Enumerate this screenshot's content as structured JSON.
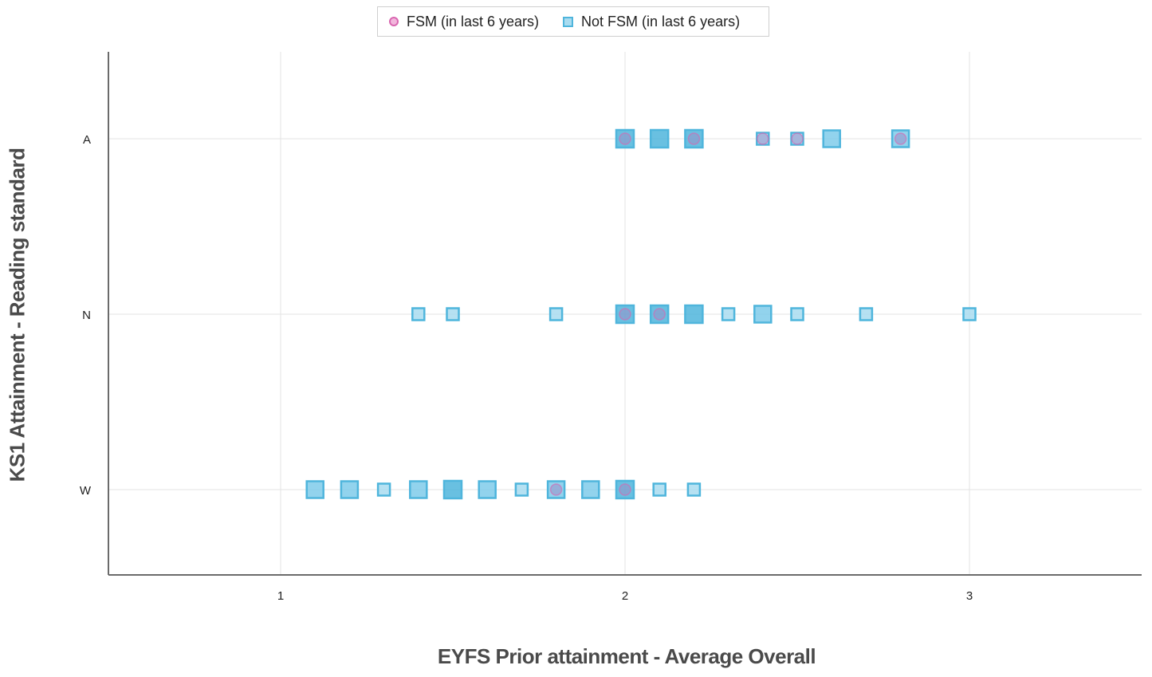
{
  "chart_data": {
    "type": "scatter",
    "title": "",
    "xlabel": "EYFS Prior attainment - Average Overall",
    "ylabel": "KS1 Attainment - Reading standard",
    "xlim": [
      0.5,
      3.5
    ],
    "x_ticks": [
      1,
      2,
      3
    ],
    "x_tick_labels": [
      "1",
      "2",
      "3"
    ],
    "y_categories": [
      "W",
      "N",
      "A"
    ],
    "grid": true,
    "legend_position": "top-center",
    "series": [
      {
        "name": "FSM (in last 6 years)",
        "marker": "circle",
        "color": "#d966b0",
        "fill": "#f2b6dc",
        "points": [
          {
            "x": 1.8,
            "y": "W"
          },
          {
            "x": 2.0,
            "y": "N"
          },
          {
            "x": 2.1,
            "y": "N"
          },
          {
            "x": 2.0,
            "y": "A"
          },
          {
            "x": 2.2,
            "y": "A"
          },
          {
            "x": 2.4,
            "y": "A"
          },
          {
            "x": 2.5,
            "y": "A"
          },
          {
            "x": 2.8,
            "y": "A"
          },
          {
            "x": 2.0,
            "y": "W"
          }
        ]
      },
      {
        "name": "Not FSM (in last 6 years)",
        "marker": "square",
        "color": "#4fb5dc",
        "fill": "#a9dcf0",
        "points": [
          {
            "x": 1.1,
            "y": "W",
            "weight": 2
          },
          {
            "x": 1.2,
            "y": "W",
            "weight": 2
          },
          {
            "x": 1.3,
            "y": "W",
            "weight": 1
          },
          {
            "x": 1.4,
            "y": "W",
            "weight": 2
          },
          {
            "x": 1.5,
            "y": "W",
            "weight": 3
          },
          {
            "x": 1.6,
            "y": "W",
            "weight": 2
          },
          {
            "x": 1.7,
            "y": "W",
            "weight": 1
          },
          {
            "x": 1.8,
            "y": "W",
            "weight": 2
          },
          {
            "x": 1.9,
            "y": "W",
            "weight": 2
          },
          {
            "x": 2.0,
            "y": "W",
            "weight": 3
          },
          {
            "x": 2.1,
            "y": "W",
            "weight": 1
          },
          {
            "x": 2.2,
            "y": "W",
            "weight": 1
          },
          {
            "x": 1.4,
            "y": "N",
            "weight": 1
          },
          {
            "x": 1.5,
            "y": "N",
            "weight": 1
          },
          {
            "x": 1.8,
            "y": "N",
            "weight": 1
          },
          {
            "x": 2.0,
            "y": "N",
            "weight": 3
          },
          {
            "x": 2.1,
            "y": "N",
            "weight": 3
          },
          {
            "x": 2.2,
            "y": "N",
            "weight": 3
          },
          {
            "x": 2.3,
            "y": "N",
            "weight": 1
          },
          {
            "x": 2.4,
            "y": "N",
            "weight": 2
          },
          {
            "x": 2.5,
            "y": "N",
            "weight": 1
          },
          {
            "x": 2.7,
            "y": "N",
            "weight": 1
          },
          {
            "x": 3.0,
            "y": "N",
            "weight": 1
          },
          {
            "x": 2.0,
            "y": "A",
            "weight": 3
          },
          {
            "x": 2.1,
            "y": "A",
            "weight": 3
          },
          {
            "x": 2.2,
            "y": "A",
            "weight": 3
          },
          {
            "x": 2.4,
            "y": "A",
            "weight": 1
          },
          {
            "x": 2.5,
            "y": "A",
            "weight": 1
          },
          {
            "x": 2.6,
            "y": "A",
            "weight": 2
          },
          {
            "x": 2.8,
            "y": "A",
            "weight": 2
          }
        ]
      }
    ]
  }
}
